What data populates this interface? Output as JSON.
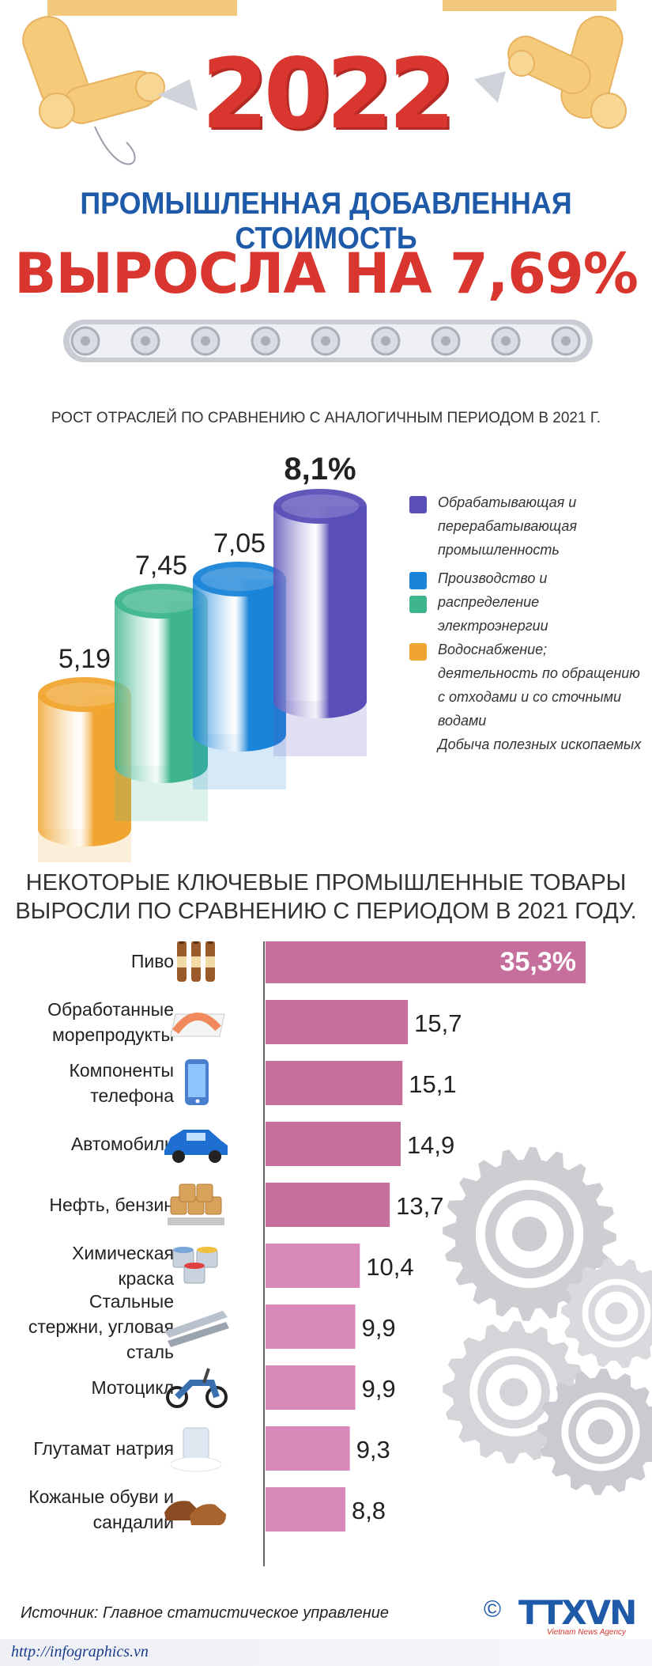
{
  "header": {
    "year": "2022",
    "subtitle": "ПРОМЫШЛЕННАЯ ДОБАВЛЕННАЯ СТОИМОСТЬ",
    "headline": "ВЫРОСЛА НА 7,69%"
  },
  "section1": {
    "title": "РОСТ ОТРАСЛЕЙ ПО СРАВНЕНИЮ С АНАЛОГИЧНЫМ ПЕРИОДОМ В 2021 Г."
  },
  "section2": {
    "title_line1": "НЕКОТОРЫЕ КЛЮЧЕВЫЕ ПРОМЫШЛЕННЫЕ ТОВАРЫ",
    "title_line2": "ВЫРОСЛИ ПО СРАВНЕНИЮ С ПЕРИОДОМ В 2021 ГОДУ."
  },
  "chart_data": [
    {
      "type": "bar",
      "title": "РОСТ ОТРАСЛЕЙ ПО СРАВНЕНИЮ С АНАЛОГИЧНЫМ ПЕРИОДОМ В 2021 Г.",
      "value_labels": [
        "5,19",
        "7,45",
        "7,05",
        "8,1%"
      ],
      "values": [
        5.19,
        7.45,
        7.05,
        8.1
      ],
      "colors": [
        "#f0a530",
        "#3fb58f",
        "#1a84d8",
        "#5a4fb8"
      ],
      "legend": [
        {
          "color": "#5a4fb8",
          "lines": [
            "Обрабатывающая и",
            "перерабатывающая",
            "промышленность"
          ]
        },
        {
          "color": "#1a84d8",
          "lines": [
            "Производство и"
          ]
        },
        {
          "color": "#3fb58f",
          "lines": [
            "распределение",
            "электроэнергии"
          ]
        },
        {
          "color": "#f0a530",
          "lines": [
            "Водоснабжение;",
            "деятельность по обращению",
            "с отходами и со сточными",
            "водами",
            "Добыча полезных ископаемых"
          ]
        }
      ]
    },
    {
      "type": "bar",
      "title": "НЕКОТОРЫЕ КЛЮЧЕВЫЕ ПРОМЫШЛЕННЫЕ ТОВАРЫ ВЫРОСЛИ ПО СРАВНЕНИЮ С ПЕРИОДОМ В 2021 ГОДУ.",
      "orientation": "horizontal",
      "categories": [
        [
          "Пиво"
        ],
        [
          "Обработанные",
          "морепродукты"
        ],
        [
          "Компоненты",
          "телефона"
        ],
        [
          "Автомобиль"
        ],
        [
          "Нефть, бензин"
        ],
        [
          "Химическая",
          "краска"
        ],
        [
          "Стальные",
          "стержни, угловая",
          "сталь"
        ],
        [
          "Мотоцикл"
        ],
        [
          "Глутамат натрия"
        ],
        [
          "Кожаные обуви и",
          "сандалии"
        ]
      ],
      "values": [
        35.3,
        15.7,
        15.1,
        14.9,
        13.7,
        10.4,
        9.9,
        9.9,
        9.3,
        8.8
      ],
      "value_labels": [
        "35,3%",
        "15,7",
        "15,1",
        "14,9",
        "13,7",
        "10,4",
        "9,9",
        "9,9",
        "9,3",
        "8,8"
      ],
      "icons": [
        "beer-bottles-icon",
        "seafood-icon",
        "phone-icon",
        "car-icon",
        "oil-barrels-icon",
        "paint-cans-icon",
        "steel-beams-icon",
        "motorcycle-icon",
        "seasoning-icon",
        "shoes-icon"
      ],
      "bar_colors": [
        "#c66f9c",
        "#c66f9c",
        "#c66f9c",
        "#c66f9c",
        "#c66f9c",
        "#d889b8",
        "#d889b8",
        "#d889b8",
        "#d889b8",
        "#d889b8"
      ]
    }
  ],
  "footer": {
    "source": "Источник: Главное статистическое управление",
    "url": "http://infographics.vn",
    "logo_symbol": "©",
    "logo_text": "TTXVN",
    "logo_sub": "Vietnam News Agency"
  }
}
